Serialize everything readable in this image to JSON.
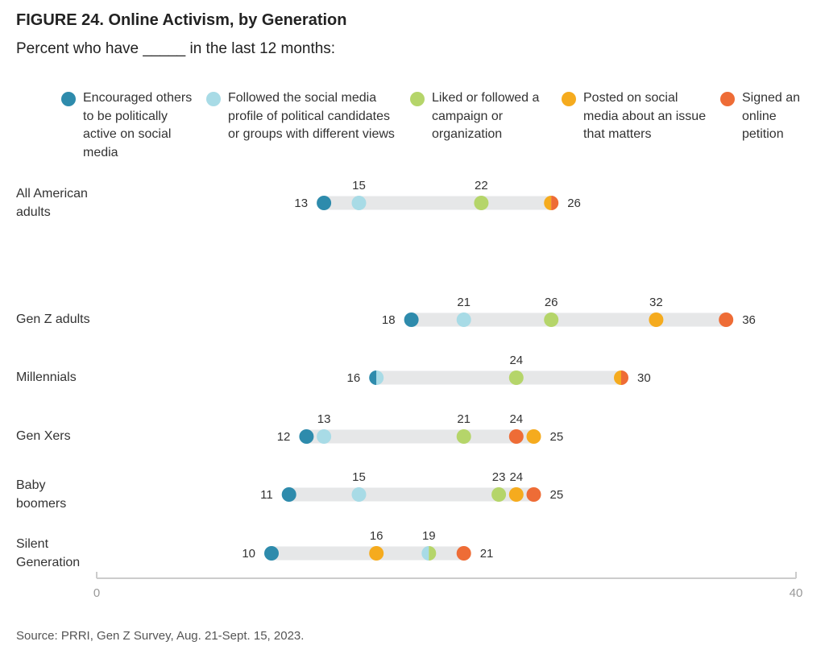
{
  "chart_data": {
    "type": "dot",
    "title": "FIGURE 24. Online Activism, by Generation",
    "subtitle": "Percent who have _____ in the last 12 months:",
    "source": "Source: PRRI, Gen Z Survey, Aug. 21-Sept. 15, 2023.",
    "categories": [
      "All American adults",
      "Gen Z adults",
      "Millennials",
      "Gen Xers",
      "Baby boomers",
      "Silent Generation"
    ],
    "series": [
      {
        "name": "Encouraged others to be politically active on social media",
        "color": "#2e8bac",
        "values": [
          13,
          18,
          16,
          12,
          11,
          10
        ]
      },
      {
        "name": "Followed the social media profile of political candidates or groups with different views",
        "color": "#a8dbe6",
        "values": [
          15,
          21,
          16,
          13,
          15,
          19
        ]
      },
      {
        "name": "Liked or followed a campaign or organization",
        "color": "#b5d56a",
        "values": [
          22,
          26,
          24,
          21,
          23,
          19
        ]
      },
      {
        "name": "Posted on social media about an issue that matters",
        "color": "#f5ab1e",
        "values": [
          26,
          32,
          30,
          25,
          24,
          16
        ]
      },
      {
        "name": "Signed an online petition",
        "color": "#ee6c36",
        "values": [
          26,
          36,
          30,
          24,
          25,
          21
        ]
      }
    ],
    "xlim": [
      0,
      40
    ],
    "xticks": [
      0,
      40
    ]
  }
}
